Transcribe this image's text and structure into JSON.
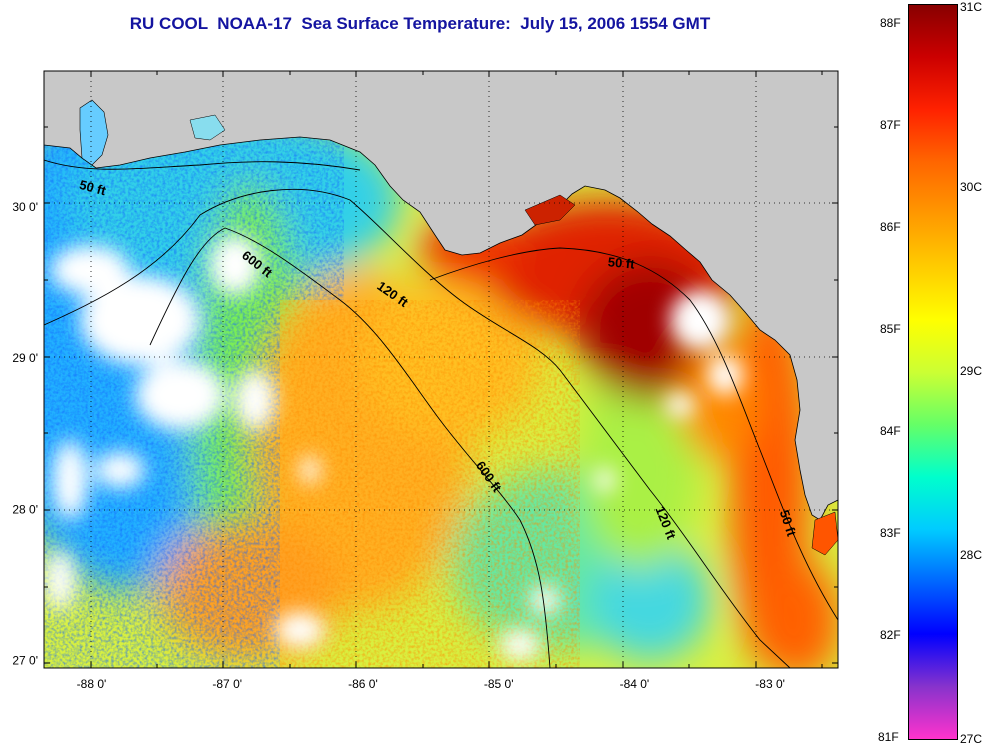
{
  "title": "RU COOL  NOAA-17  Sea Surface Temperature:  July 15, 2006 1554 GMT",
  "map": {
    "lon_range": [
      -88.35,
      -82.5
    ],
    "lat_range": [
      26.95,
      30.9
    ],
    "x_ticks": [
      {
        "value": -88,
        "label": "-88 0'"
      },
      {
        "value": -87,
        "label": "-87 0'"
      },
      {
        "value": -86,
        "label": "-86 0'"
      },
      {
        "value": -85,
        "label": "-85 0'"
      },
      {
        "value": -84,
        "label": "-84 0'"
      },
      {
        "value": -83,
        "label": "-83 0'"
      }
    ],
    "y_ticks": [
      {
        "value": 30,
        "label": "30 0'"
      },
      {
        "value": 29,
        "label": "29 0'"
      },
      {
        "value": 28,
        "label": "28 0'"
      },
      {
        "value": 27,
        "label": "27 0'"
      }
    ],
    "grid": "dotted",
    "land_color": "#c8c8c8",
    "cloud_color": "#ffffff",
    "contour_labels": [
      {
        "text": "50 ft",
        "lon": -88.0,
        "lat": 30.1,
        "rotate": 15
      },
      {
        "text": "600 ft",
        "lon": -86.8,
        "lat": 29.6,
        "rotate": 38
      },
      {
        "text": "120 ft",
        "lon": -85.8,
        "lat": 29.4,
        "rotate": 35
      },
      {
        "text": "50 ft",
        "lon": -84.1,
        "lat": 29.6,
        "rotate": 5
      },
      {
        "text": "600 ft",
        "lon": -85.1,
        "lat": 28.2,
        "rotate": 55
      },
      {
        "text": "120 ft",
        "lon": -83.8,
        "lat": 27.9,
        "rotate": 68
      },
      {
        "text": "50 ft",
        "lon": -82.9,
        "lat": 27.9,
        "rotate": 72
      }
    ]
  },
  "colorbar": {
    "colors": [
      "#ff33cc",
      "#8833cc",
      "#0000ff",
      "#0066ff",
      "#00ccff",
      "#00ffcc",
      "#66ff66",
      "#ccff33",
      "#ffff00",
      "#ffcc00",
      "#ff9900",
      "#ff6600",
      "#ff2200",
      "#cc0000",
      "#880000"
    ],
    "fahrenheit": [
      {
        "label": "88F",
        "value": 88
      },
      {
        "label": "87F",
        "value": 87
      },
      {
        "label": "86F",
        "value": 86
      },
      {
        "label": "85F",
        "value": 85
      },
      {
        "label": "84F",
        "value": 84
      },
      {
        "label": "83F",
        "value": 83
      },
      {
        "label": "82F",
        "value": 82
      },
      {
        "label": "81F",
        "value": 81
      }
    ],
    "celsius": [
      {
        "label": "31C",
        "value": 31
      },
      {
        "label": "30C",
        "value": 30
      },
      {
        "label": "29C",
        "value": 29
      },
      {
        "label": "28C",
        "value": 28
      },
      {
        "label": "27C",
        "value": 27
      }
    ]
  }
}
